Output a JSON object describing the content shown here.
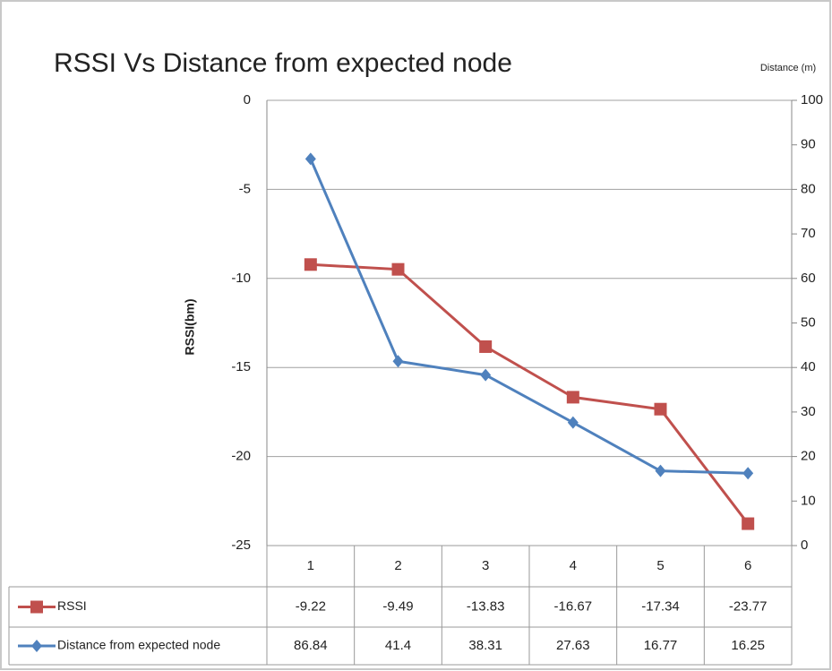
{
  "chart_data": {
    "type": "line",
    "title": "RSSI Vs Distance from expected node",
    "ylabel": "RSSI(bm)",
    "y2label": "Distance (m)",
    "categories": [
      "1",
      "2",
      "3",
      "4",
      "5",
      "6"
    ],
    "series": [
      {
        "name": "RSSI",
        "color": "#c0504d",
        "marker": "square",
        "axis": "y",
        "values": [
          -9.22,
          -9.49,
          -13.83,
          -16.67,
          -17.34,
          -23.77
        ]
      },
      {
        "name": "Distance from expected node",
        "color": "#4f81bd",
        "marker": "diamond",
        "axis": "y2",
        "values": [
          86.84,
          41.4,
          38.31,
          27.63,
          16.77,
          16.25
        ]
      }
    ],
    "ylim": [
      -25,
      0
    ],
    "yticks": [
      0,
      -5,
      -10,
      -15,
      -20,
      -25
    ],
    "y2lim": [
      0,
      100
    ],
    "y2ticks": [
      0,
      10,
      20,
      30,
      40,
      50,
      60,
      70,
      80,
      90,
      100
    ],
    "grid": true,
    "data_table": true
  }
}
